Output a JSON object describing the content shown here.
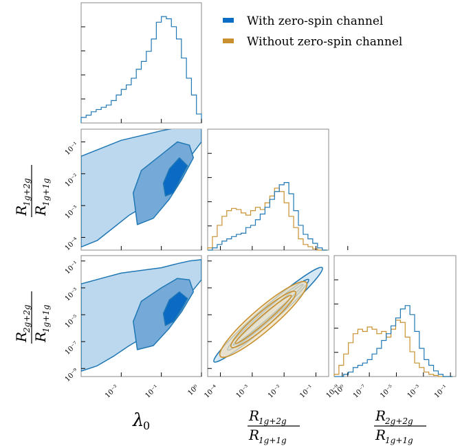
{
  "chart_data": {
    "type": "corner-plot",
    "title": "",
    "colors": {
      "with": "#1f77b4",
      "with_fill_light": "#bcd8ee",
      "with_fill_mid": "#74a9d8",
      "with_fill_dark": "#0b6bc4",
      "without": "#c8902e",
      "without_fill": "#eedfbf"
    },
    "legend": {
      "placement": "top-right",
      "entries": [
        {
          "name": "With zero-spin channel",
          "color": "#0a6cc4"
        },
        {
          "name": "Without zero-spin channel",
          "color": "#c8902e"
        }
      ]
    },
    "variables": [
      {
        "key": "lambda0",
        "label": "λ₀",
        "label_main": "λ",
        "label_sub": "0",
        "scale": "log",
        "range_log10": [
          -3,
          0
        ],
        "ticks": [
          {
            "v": -2,
            "label": "10⁻²"
          },
          {
            "v": -1,
            "label": "10⁻¹"
          },
          {
            "v": 0,
            "label": "10⁰"
          }
        ]
      },
      {
        "key": "R_1g2g",
        "label": "R_{1g+2g} / R_{1g+1g}",
        "numerator": "R",
        "num_sub": "1g+2g",
        "denominator": "R",
        "den_sub": "1g+1g",
        "scale": "log",
        "range_log10": [
          -4.4,
          -0.6
        ],
        "ticks": [
          {
            "v": -4,
            "label": "10⁻⁴"
          },
          {
            "v": -3,
            "label": "10⁻³"
          },
          {
            "v": -2,
            "label": "10⁻²"
          },
          {
            "v": -1,
            "label": "10⁻¹"
          },
          {
            "v": 0,
            "label": "10⁰"
          }
        ]
      },
      {
        "key": "R_2g2g",
        "label": "R_{2g+2g} / R_{1g+1g}",
        "numerator": "R",
        "num_sub": "2g+2g",
        "denominator": "R",
        "den_sub": "1g+1g",
        "scale": "log",
        "range_log10": [
          -9.6,
          -0.6
        ],
        "ticks": [
          {
            "v": -9,
            "label": "10⁻⁹"
          },
          {
            "v": -7,
            "label": "10⁻⁷"
          },
          {
            "v": -5,
            "label": "10⁻⁵"
          },
          {
            "v": -3,
            "label": "10⁻³"
          },
          {
            "v": -1,
            "label": "10⁻¹"
          }
        ]
      }
    ],
    "diagonal_histograms": {
      "lambda0": {
        "with_zero_spin": {
          "bins_log10_edges": [
            -3.0,
            -2.875,
            -2.75,
            -2.625,
            -2.5,
            -2.375,
            -2.25,
            -2.125,
            -2.0,
            -1.875,
            -1.75,
            -1.625,
            -1.5,
            -1.375,
            -1.25,
            -1.125,
            -1.0,
            -0.875,
            -0.75,
            -0.625,
            -0.5,
            -0.375,
            -0.25,
            -0.125,
            0.0
          ],
          "heights": [
            0.05,
            0.07,
            0.1,
            0.12,
            0.14,
            0.16,
            0.2,
            0.25,
            0.3,
            0.34,
            0.4,
            0.48,
            0.55,
            0.64,
            0.75,
            0.9,
            0.95,
            0.93,
            0.86,
            0.75,
            0.58,
            0.4,
            0.25,
            0.08
          ]
        }
      },
      "R_1g2g": {
        "with_zero_spin": {
          "bins_log10_edges": [
            -4.4,
            -4.25,
            -4.1,
            -3.95,
            -3.8,
            -3.65,
            -3.5,
            -3.35,
            -3.2,
            -3.05,
            -2.9,
            -2.75,
            -2.6,
            -2.45,
            -2.3,
            -2.15,
            -2.0,
            -1.85,
            -1.7,
            -1.55,
            -1.4,
            -1.25,
            -1.1,
            -0.95,
            -0.8,
            -0.65
          ],
          "heights": [
            0.0,
            0.02,
            0.05,
            0.08,
            0.1,
            0.12,
            0.14,
            0.15,
            0.2,
            0.22,
            0.27,
            0.32,
            0.38,
            0.45,
            0.52,
            0.58,
            0.6,
            0.5,
            0.35,
            0.22,
            0.14,
            0.1,
            0.06,
            0.02,
            0.0
          ]
        },
        "without_zero_spin": {
          "bins_log10_edges": [
            -4.4,
            -4.25,
            -4.1,
            -3.95,
            -3.8,
            -3.65,
            -3.5,
            -3.35,
            -3.2,
            -3.05,
            -2.9,
            -2.75,
            -2.6,
            -2.45,
            -2.3,
            -2.15,
            -2.0,
            -1.85,
            -1.7,
            -1.55,
            -1.4,
            -1.25,
            -1.1,
            -0.95,
            -0.8,
            -0.65
          ],
          "heights": [
            0.02,
            0.12,
            0.22,
            0.3,
            0.35,
            0.37,
            0.36,
            0.33,
            0.31,
            0.35,
            0.38,
            0.36,
            0.42,
            0.48,
            0.55,
            0.52,
            0.42,
            0.3,
            0.2,
            0.1,
            0.05,
            0.03,
            0.01,
            0.0,
            0.0
          ]
        }
      },
      "R_2g2g": {
        "with_zero_spin": {
          "bins_log10_edges": [
            -9.6,
            -9.25,
            -8.9,
            -8.55,
            -8.2,
            -7.85,
            -7.5,
            -7.15,
            -6.8,
            -6.45,
            -6.1,
            -5.75,
            -5.4,
            -5.05,
            -4.7,
            -4.35,
            -4.0,
            -3.65,
            -3.3,
            -2.95,
            -2.6,
            -2.25,
            -1.9,
            -1.55,
            -1.2,
            -0.85
          ],
          "heights": [
            0.0,
            0.0,
            0.02,
            0.04,
            0.08,
            0.1,
            0.12,
            0.15,
            0.2,
            0.25,
            0.32,
            0.38,
            0.45,
            0.52,
            0.6,
            0.63,
            0.55,
            0.4,
            0.25,
            0.15,
            0.1,
            0.05,
            0.02,
            0.0,
            0.0
          ]
        },
        "without_zero_spin": {
          "bins_log10_edges": [
            -9.6,
            -9.25,
            -8.9,
            -8.55,
            -8.2,
            -7.85,
            -7.5,
            -7.15,
            -6.8,
            -6.45,
            -6.1,
            -5.75,
            -5.4,
            -5.05,
            -4.7,
            -4.35,
            -4.0,
            -3.65,
            -3.3,
            -2.95,
            -2.6,
            -2.25,
            -1.9,
            -1.55,
            -1.2,
            -0.85
          ],
          "heights": [
            0.02,
            0.1,
            0.2,
            0.3,
            0.38,
            0.42,
            0.4,
            0.44,
            0.42,
            0.38,
            0.4,
            0.35,
            0.42,
            0.5,
            0.48,
            0.35,
            0.22,
            0.12,
            0.08,
            0.04,
            0.02,
            0.01,
            0.0,
            0.0,
            0.0
          ]
        }
      }
    },
    "contour_panels": [
      {
        "x": "lambda0",
        "y": "R_1g2g",
        "series": "with_zero_spin",
        "levels": [
          {
            "level": "outer",
            "fill": "#bcd8ee",
            "points": [
              [
                -3.0,
                -4.3
              ],
              [
                -2.6,
                -4.1
              ],
              [
                -2.2,
                -3.7
              ],
              [
                -1.8,
                -3.3
              ],
              [
                -1.4,
                -3.0
              ],
              [
                -1.0,
                -2.6
              ],
              [
                -0.6,
                -2.0
              ],
              [
                -0.3,
                -1.5
              ],
              [
                0.0,
                -1.0
              ],
              [
                0.0,
                -0.45
              ],
              [
                -0.3,
                -0.4
              ],
              [
                -0.6,
                -0.55
              ],
              [
                -1.0,
                -0.65
              ],
              [
                -1.5,
                -0.8
              ],
              [
                -2.0,
                -0.95
              ],
              [
                -2.5,
                -1.2
              ],
              [
                -3.0,
                -1.45
              ]
            ]
          },
          {
            "level": "mid",
            "fill": "#74a9d8",
            "points": [
              [
                -1.6,
                -3.6
              ],
              [
                -1.2,
                -3.4
              ],
              [
                -0.8,
                -2.8
              ],
              [
                -0.5,
                -2.2
              ],
              [
                -0.2,
                -1.5
              ],
              [
                -0.3,
                -1.1
              ],
              [
                -0.6,
                -1.0
              ],
              [
                -1.0,
                -1.4
              ],
              [
                -1.5,
                -1.9
              ],
              [
                -1.7,
                -2.6
              ]
            ]
          },
          {
            "level": "inner",
            "fill": "#0b6bc4",
            "points": [
              [
                -0.9,
                -2.7
              ],
              [
                -0.7,
                -2.6
              ],
              [
                -0.5,
                -2.1
              ],
              [
                -0.35,
                -1.75
              ],
              [
                -0.55,
                -1.5
              ],
              [
                -0.8,
                -1.85
              ],
              [
                -0.95,
                -2.3
              ]
            ]
          }
        ]
      },
      {
        "x": "lambda0",
        "y": "R_2g2g",
        "series": "with_zero_spin",
        "levels": [
          {
            "level": "outer",
            "fill": "#bcd8ee",
            "points": [
              [
                -3.0,
                -9.2
              ],
              [
                -2.6,
                -8.8
              ],
              [
                -2.2,
                -8.1
              ],
              [
                -1.8,
                -7.3
              ],
              [
                -1.4,
                -6.6
              ],
              [
                -1.0,
                -5.8
              ],
              [
                -0.6,
                -4.5
              ],
              [
                -0.3,
                -3.5
              ],
              [
                0.0,
                -2.4
              ],
              [
                0.0,
                -0.9
              ],
              [
                -0.3,
                -1.0
              ],
              [
                -0.6,
                -1.2
              ],
              [
                -1.0,
                -1.5
              ],
              [
                -1.5,
                -1.7
              ],
              [
                -2.0,
                -1.9
              ],
              [
                -2.5,
                -2.3
              ],
              [
                -3.0,
                -2.7
              ]
            ]
          },
          {
            "level": "mid",
            "fill": "#74a9d8",
            "points": [
              [
                -1.6,
                -7.6
              ],
              [
                -1.2,
                -7.3
              ],
              [
                -0.8,
                -6.0
              ],
              [
                -0.5,
                -4.8
              ],
              [
                -0.2,
                -3.3
              ],
              [
                -0.3,
                -2.4
              ],
              [
                -0.6,
                -2.3
              ],
              [
                -1.0,
                -3.0
              ],
              [
                -1.5,
                -4.0
              ],
              [
                -1.7,
                -5.5
              ]
            ]
          },
          {
            "level": "inner",
            "fill": "#0b6bc4",
            "points": [
              [
                -0.9,
                -5.8
              ],
              [
                -0.7,
                -5.5
              ],
              [
                -0.5,
                -4.6
              ],
              [
                -0.35,
                -3.8
              ],
              [
                -0.55,
                -3.3
              ],
              [
                -0.8,
                -3.9
              ],
              [
                -0.95,
                -4.9
              ]
            ]
          }
        ]
      },
      {
        "x": "R_1g2g",
        "y": "R_2g2g",
        "series": "both",
        "ellipses": [
          {
            "series": "with_zero_spin",
            "center": [
              -2.5,
              -5.0
            ],
            "from": [
              -4.2,
              -8.5
            ],
            "to": [
              -0.8,
              -1.5
            ],
            "width_log10": 0.25,
            "stroke": "#1f77b4"
          },
          {
            "series": "without_zero_spin",
            "center": [
              -2.6,
              -5.2
            ],
            "from": [
              -4.0,
              -8.1
            ],
            "to": [
              -1.3,
              -2.6
            ],
            "width_log10": 0.35,
            "stroke": "#c8902e"
          }
        ]
      }
    ]
  }
}
